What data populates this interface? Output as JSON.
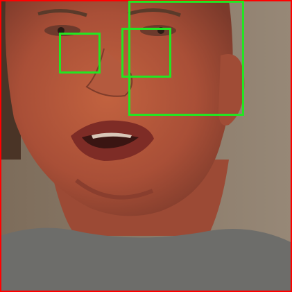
{
  "image": {
    "subject": "face-photo",
    "colors": {
      "background": "#8c7d6a",
      "skin": "#b0553d",
      "hair": "#4a3426",
      "shirt": "#6d6d6a",
      "outer_frame": "#ff0000",
      "box_stroke": "#22e622"
    }
  },
  "overlay": {
    "box_count": 3
  }
}
